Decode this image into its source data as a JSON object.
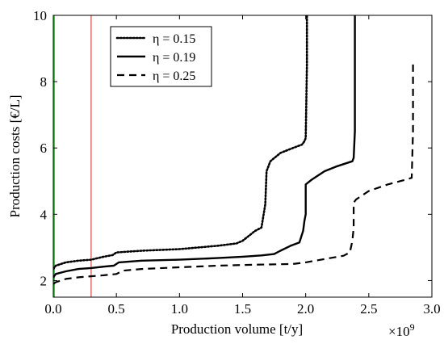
{
  "chart_data": {
    "type": "line",
    "xlabel": "Production volume [t/y]",
    "ylabel": "Production costs [€/L]",
    "x_multiplier_label": "×10",
    "x_multiplier_exponent": "9",
    "xlim": [
      0,
      3.0
    ],
    "ylim": [
      1.5,
      10
    ],
    "x_ticks": [
      0,
      0.5,
      1,
      1.5,
      2,
      2.5,
      3
    ],
    "x_tick_labels": [
      "0.0",
      "0.5",
      "1.0",
      "1.5",
      "2.0",
      "2.5",
      "3.0"
    ],
    "y_ticks": [
      2,
      4,
      6,
      8,
      10
    ],
    "y_tick_labels": [
      "2",
      "4",
      "6",
      "8",
      "10"
    ],
    "grid": false,
    "legend_position": "top-left",
    "reference_lines": [
      {
        "orientation": "vertical",
        "x": 0.3,
        "color": "#e8413c"
      },
      {
        "orientation": "vertical",
        "x": 0.0,
        "color": "#3cc83c"
      }
    ],
    "series": [
      {
        "name": "η = 0.15",
        "legend_label": "η = 0.15",
        "style": "dotted",
        "x": [
          0,
          0.02,
          0.1,
          0.2,
          0.3,
          0.4,
          0.47,
          0.5,
          0.7,
          1.0,
          1.3,
          1.45,
          1.5,
          1.55,
          1.6,
          1.65,
          1.68,
          1.69,
          1.72,
          1.8,
          1.9,
          1.97,
          1.99,
          2.0,
          2.01,
          2.01
        ],
        "y": [
          2.35,
          2.45,
          2.55,
          2.6,
          2.63,
          2.72,
          2.77,
          2.85,
          2.9,
          2.95,
          3.05,
          3.12,
          3.2,
          3.35,
          3.5,
          3.6,
          4.3,
          5.3,
          5.6,
          5.85,
          6.0,
          6.1,
          6.2,
          6.3,
          8.5,
          10.0
        ]
      },
      {
        "name": "η = 0.19",
        "legend_label": "η = 0.19",
        "style": "solid",
        "x": [
          0,
          0.02,
          0.1,
          0.2,
          0.3,
          0.4,
          0.48,
          0.52,
          0.7,
          1.0,
          1.3,
          1.5,
          1.65,
          1.75,
          1.8,
          1.88,
          1.95,
          1.98,
          1.99,
          2.0,
          2.0,
          2.05,
          2.15,
          2.25,
          2.33,
          2.37,
          2.38,
          2.39,
          2.39
        ],
        "y": [
          2.1,
          2.2,
          2.28,
          2.35,
          2.38,
          2.42,
          2.45,
          2.55,
          2.6,
          2.63,
          2.68,
          2.72,
          2.76,
          2.8,
          2.9,
          3.05,
          3.15,
          3.5,
          3.8,
          4.0,
          4.9,
          5.05,
          5.3,
          5.45,
          5.55,
          5.6,
          5.7,
          6.5,
          10.0
        ]
      },
      {
        "name": "η = 0.25",
        "legend_label": "η = 0.25",
        "style": "dashed",
        "x": [
          0,
          0.02,
          0.1,
          0.2,
          0.3,
          0.4,
          0.5,
          0.55,
          0.7,
          1.0,
          1.3,
          1.6,
          1.9,
          2.0,
          2.15,
          2.3,
          2.35,
          2.37,
          2.38,
          2.38,
          2.4,
          2.5,
          2.65,
          2.8,
          2.84,
          2.85,
          2.85
        ],
        "y": [
          1.9,
          1.95,
          2.05,
          2.1,
          2.13,
          2.16,
          2.2,
          2.3,
          2.35,
          2.4,
          2.45,
          2.48,
          2.5,
          2.55,
          2.65,
          2.75,
          2.85,
          3.2,
          3.6,
          4.35,
          4.45,
          4.7,
          4.9,
          5.05,
          5.1,
          6.5,
          8.6
        ]
      }
    ]
  }
}
